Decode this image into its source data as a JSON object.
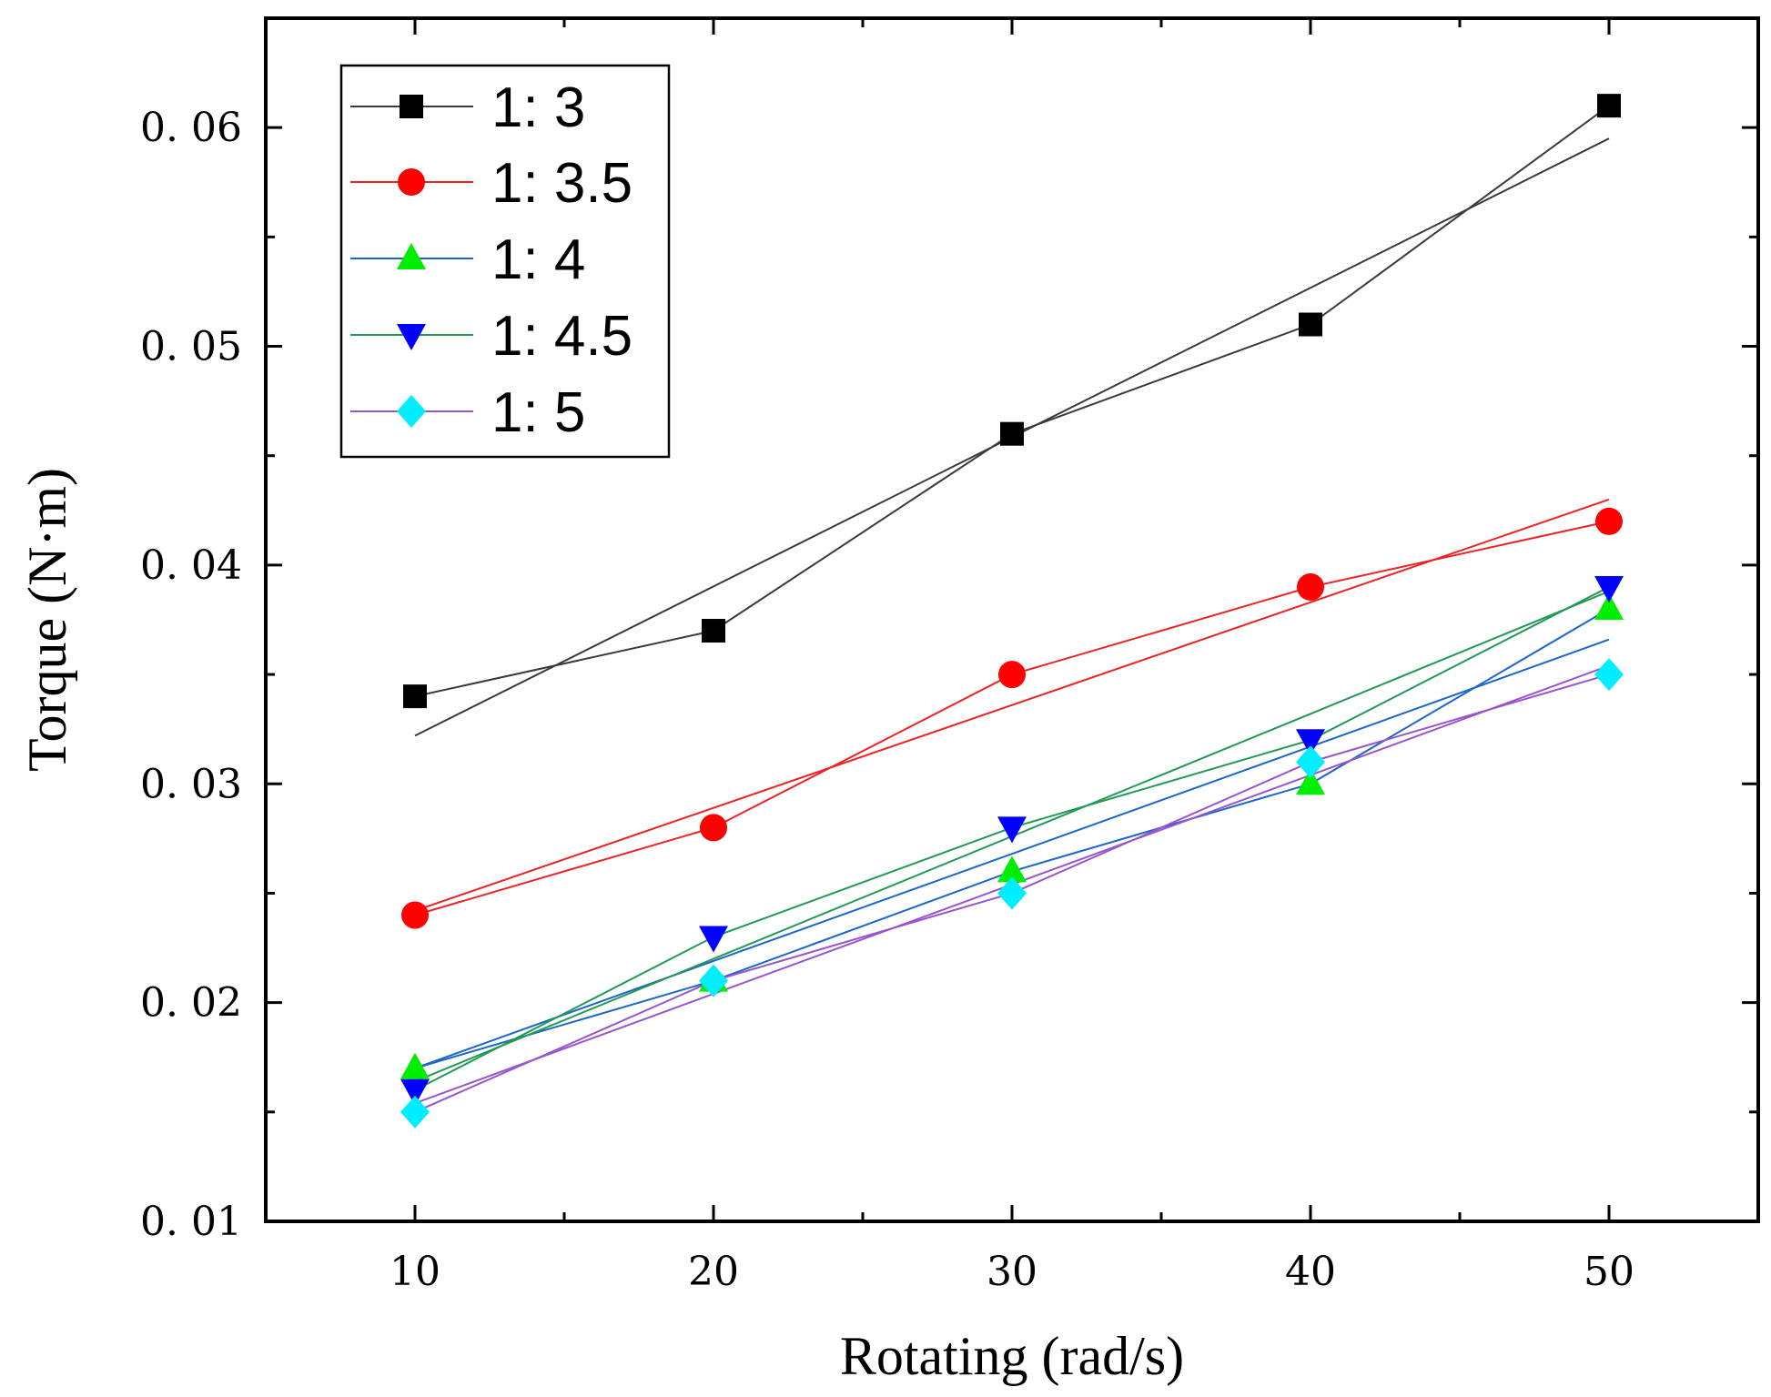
{
  "chart_data": {
    "type": "line",
    "title": "",
    "xlabel": "Rotating (rad/s)",
    "ylabel": "Torque (N·m)",
    "xlim": [
      5,
      55
    ],
    "ylim": [
      0.01,
      0.065
    ],
    "x_ticks": [
      10,
      20,
      30,
      40,
      50
    ],
    "x_tick_labels": [
      "10",
      "20",
      "30",
      "40",
      "50"
    ],
    "y_ticks": [
      0.01,
      0.02,
      0.03,
      0.04,
      0.05,
      0.06
    ],
    "y_tick_labels": [
      "0. 01",
      "0. 02",
      "0. 03",
      "0. 04",
      "0. 05",
      "0. 06"
    ],
    "grid": false,
    "legend_position": "top-left",
    "x": [
      10,
      20,
      30,
      40,
      50
    ],
    "series": [
      {
        "name": "1:  3",
        "marker": "square",
        "marker_color": "#000000",
        "line_color": "#3a3a3a",
        "values": [
          0.034,
          0.037,
          0.046,
          0.051,
          0.061
        ],
        "fit": [
          0.0322,
          0.0595
        ]
      },
      {
        "name": "1:  3.5",
        "marker": "circle",
        "marker_color": "#ff0000",
        "line_color": "#ee2222",
        "values": [
          0.024,
          0.028,
          0.035,
          0.039,
          0.042
        ],
        "fit": [
          0.0242,
          0.043
        ]
      },
      {
        "name": "1:  4",
        "marker": "triangle-up",
        "marker_color": "#00ee00",
        "line_color": "#1a66cc",
        "values": [
          0.017,
          0.021,
          0.026,
          0.03,
          0.038
        ],
        "fit": [
          0.017,
          0.0366
        ]
      },
      {
        "name": "1:  4.5",
        "marker": "triangle-down",
        "marker_color": "#0000ff",
        "line_color": "#229955",
        "values": [
          0.016,
          0.023,
          0.028,
          0.032,
          0.039
        ],
        "fit": [
          0.0164,
          0.0388
        ]
      },
      {
        "name": "1:  5",
        "marker": "diamond",
        "marker_color": "#00eeff",
        "line_color": "#9955cc",
        "values": [
          0.015,
          0.021,
          0.025,
          0.031,
          0.035
        ],
        "fit": [
          0.0154,
          0.0354
        ]
      }
    ]
  }
}
